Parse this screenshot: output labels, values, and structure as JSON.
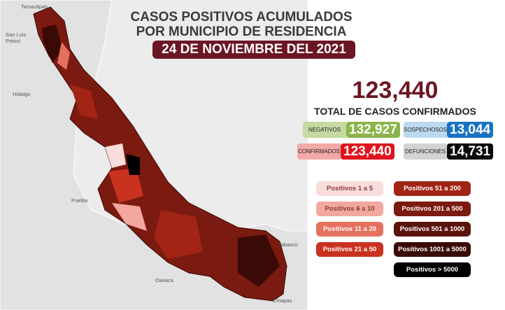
{
  "header": {
    "title_lines": [
      "CASOS POSITIVOS ACUMULADOS",
      "POR MUNICIPIO DE RESIDENCIA"
    ],
    "date": "24 DE NOVIEMBRE DEL 2021"
  },
  "total": {
    "value": "123,440",
    "label": "TOTAL DE CASOS CONFIRMADOS"
  },
  "stats": [
    {
      "label": "NEGATIVOS",
      "value": "132,927",
      "label_color": "#c5d9a0",
      "value_color": "#8bb54a"
    },
    {
      "label": "SOSPECHOSOS",
      "value": "13,044",
      "label_color": "#bcd9ef",
      "value_color": "#1a73c2"
    },
    {
      "label": "CONFIRMADOS",
      "value": "123,440",
      "label_color": "#f2a9a9",
      "value_color": "#e0141e"
    },
    {
      "label": "DEFUNCIONES",
      "value": "14,731",
      "label_color": "#d3d3d3",
      "value_color": "#0a0a0a"
    }
  ],
  "legend": [
    {
      "label": "Positivos 1 a 5",
      "color": "#f9dcdc"
    },
    {
      "label": "Positivos 6 a 10",
      "color": "#f2a79f"
    },
    {
      "label": "Positivos 11 a 20",
      "color": "#e5705e"
    },
    {
      "label": "Positivos 21 a 50",
      "color": "#c8321f"
    },
    {
      "label": "Positivos 51 a 200",
      "color": "#a22415"
    },
    {
      "label": "Positivos 201 a 500",
      "color": "#7b1a10"
    },
    {
      "label": "Positivos 501 a 1000",
      "color": "#5a130b"
    },
    {
      "label": "Positivos 1001 a 5000",
      "color": "#3a0b06"
    },
    {
      "label": "Positivos > 5000",
      "color": "#000000"
    }
  ],
  "map_labels": [
    "Tamaulipas",
    "San Luis Potosí",
    "Hidalgo",
    "Puebla",
    "Oaxaca",
    "Tabasco",
    "Chiapas"
  ]
}
